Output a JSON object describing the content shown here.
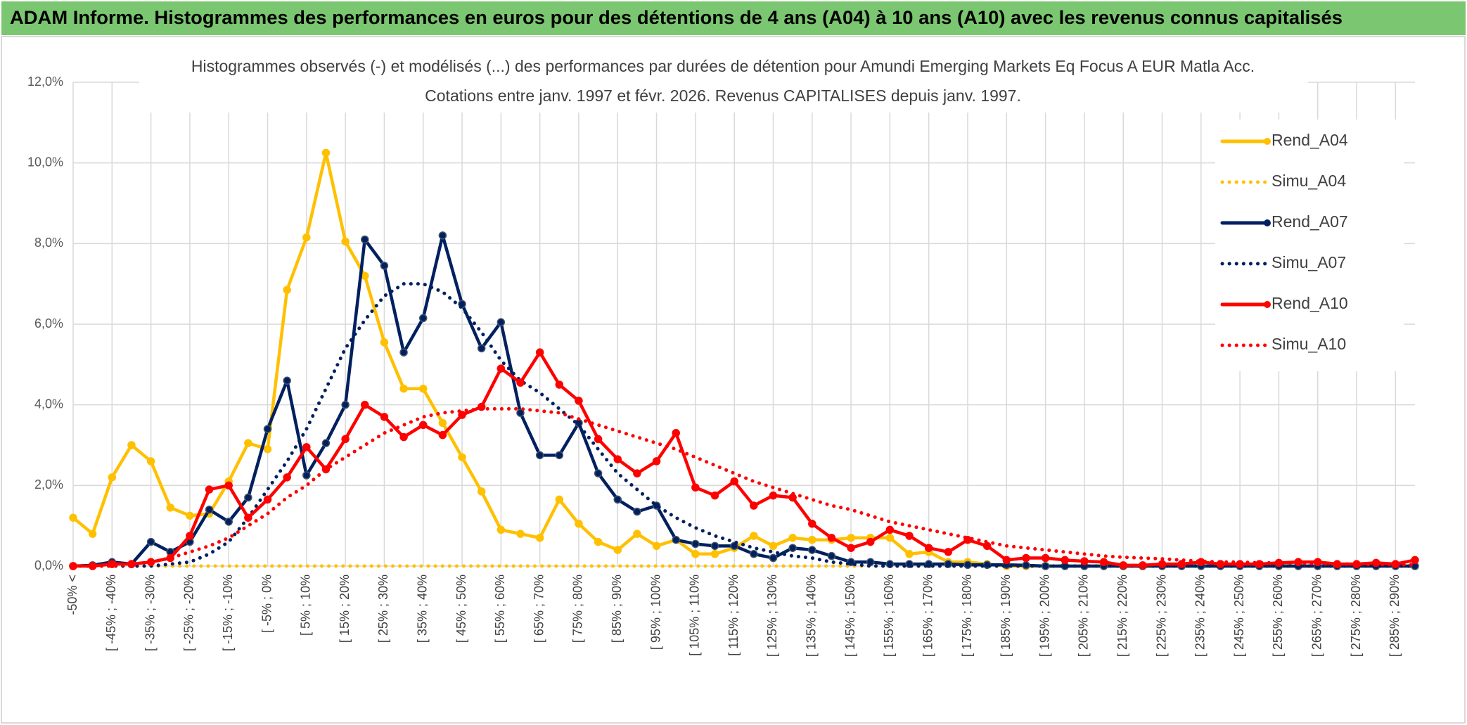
{
  "header": {
    "title": "ADAM Informe. Histogrammes des performances en euros pour des détentions de 4 ans (A04) à 10 ans (A10) avec les revenus connus capitalisés"
  },
  "chart_data": {
    "type": "line",
    "title": "Histogrammes observés (-) et modélisés (...) des performances par durées de détention pour Amundi Emerging Markets Eq Focus A EUR Matla Acc.",
    "subtitle": "Cotations entre janv. 1997 et févr. 2026. Revenus CAPITALISES depuis janv. 1997.",
    "categories": [
      "-50% <",
      null,
      "[ -45% ; -40%",
      null,
      "[ -35% ; -30%",
      null,
      "[ -25% ; -20%",
      null,
      "[ -15% ; -10%",
      null,
      "[ -5% ; 0%",
      null,
      "[ 5% ; 10%",
      null,
      "[ 15% ; 20%",
      null,
      "[ 25% ; 30%",
      null,
      "[ 35% ; 40%",
      null,
      "[ 45% ; 50%",
      null,
      "[ 55% ; 60%",
      null,
      "[ 65% ; 70%",
      null,
      "[ 75% ; 80%",
      null,
      "[ 85% ; 90%",
      null,
      "[ 95% ; 100%",
      null,
      "[ 105% ; 110%",
      null,
      "[ 115% ; 120%",
      null,
      "[ 125% ; 130%",
      null,
      "[ 135% ; 140%",
      null,
      "[ 145% ; 150%",
      null,
      "[ 155% ; 160%",
      null,
      "[ 165% ; 170%",
      null,
      "[ 175% ; 180%",
      null,
      "[ 185% ; 190%",
      null,
      "[ 195% ; 200%",
      null,
      "[ 205% ; 210%",
      null,
      "[ 215% ; 220%",
      null,
      "[ 225% ; 230%",
      null,
      "[ 235% ; 240%",
      null,
      "[ 245% ; 250%",
      null,
      "[ 255% ; 260%",
      null,
      "[ 265% ; 270%",
      null,
      "[ 275% ; 280%",
      null,
      "[ 285% ; 290%",
      null
    ],
    "series": [
      {
        "name": "Rend_A04",
        "color": "#ffc000",
        "style": "solid",
        "markers": true,
        "values": [
          1.2,
          0.8,
          2.2,
          3.0,
          2.6,
          1.45,
          1.25,
          1.3,
          2.1,
          3.05,
          2.9,
          6.85,
          8.15,
          10.25,
          8.05,
          7.2,
          5.55,
          4.4,
          4.4,
          3.55,
          2.7,
          1.85,
          0.9,
          0.8,
          0.7,
          1.65,
          1.05,
          0.6,
          0.4,
          0.8,
          0.5,
          0.65,
          0.3,
          0.3,
          0.45,
          0.75,
          0.5,
          0.7,
          0.65,
          0.65,
          0.7,
          0.7,
          0.7,
          0.3,
          0.35,
          0.1,
          0.1,
          0.05,
          0,
          0,
          0,
          0,
          0,
          0,
          0,
          0,
          0,
          0,
          0,
          0,
          0,
          0,
          0,
          0,
          0,
          0,
          0,
          0,
          0,
          0
        ]
      },
      {
        "name": "Simu_A04",
        "color": "#ffc000",
        "style": "dotted",
        "markers": false,
        "values": [
          0,
          0,
          0,
          0,
          0,
          0,
          0,
          0,
          0,
          0,
          0,
          0,
          0,
          0,
          0,
          0,
          0,
          0,
          0,
          0,
          0,
          0,
          0,
          0,
          0,
          0,
          0,
          0,
          0,
          0,
          0,
          0,
          0,
          0,
          0,
          0,
          0,
          0,
          0,
          0,
          0,
          0,
          0,
          0,
          0,
          0,
          0,
          0,
          0,
          0,
          0,
          0,
          0,
          0,
          0,
          0,
          0,
          0,
          0,
          0,
          0,
          0,
          0,
          0,
          0,
          0,
          0,
          0,
          0,
          0
        ]
      },
      {
        "name": "Rend_A07",
        "color": "#002060",
        "style": "solid",
        "markers": true,
        "values": [
          0,
          0.02,
          0.1,
          0.05,
          0.6,
          0.35,
          0.6,
          1.4,
          1.1,
          1.7,
          3.4,
          4.6,
          2.25,
          3.05,
          4.0,
          8.1,
          7.45,
          5.3,
          6.15,
          8.2,
          6.5,
          5.4,
          6.05,
          3.8,
          2.75,
          2.75,
          3.55,
          2.3,
          1.65,
          1.35,
          1.5,
          0.65,
          0.55,
          0.5,
          0.5,
          0.3,
          0.2,
          0.45,
          0.4,
          0.25,
          0.1,
          0.1,
          0.05,
          0.05,
          0.05,
          0.05,
          0.03,
          0.03,
          0.03,
          0.02,
          0,
          0,
          0,
          0,
          0,
          0,
          0,
          0,
          0,
          0,
          0,
          0,
          0,
          0,
          0,
          0,
          0,
          0,
          0,
          0
        ]
      },
      {
        "name": "Simu_A07",
        "color": "#002060",
        "style": "dotted",
        "markers": false,
        "values": [
          0,
          0,
          0,
          0,
          0,
          0.05,
          0.1,
          0.3,
          0.6,
          1.2,
          1.9,
          2.6,
          3.4,
          4.4,
          5.4,
          6.1,
          6.7,
          7.0,
          7.0,
          6.8,
          6.4,
          5.8,
          5.1,
          4.6,
          4.3,
          3.9,
          3.5,
          2.9,
          2.3,
          1.9,
          1.5,
          1.2,
          0.95,
          0.75,
          0.6,
          0.45,
          0.35,
          0.25,
          0.2,
          0.1,
          0.05,
          0,
          0,
          0,
          0,
          0,
          0,
          0,
          0,
          0,
          0,
          0,
          0,
          0,
          0,
          0,
          0,
          0,
          0,
          0,
          0,
          0,
          0,
          0,
          0,
          0,
          0,
          0,
          0,
          0
        ]
      },
      {
        "name": "Rend_A10",
        "color": "#ff0000",
        "style": "solid",
        "markers": true,
        "values": [
          0,
          0,
          0.05,
          0.05,
          0.1,
          0.2,
          0.75,
          1.9,
          2.0,
          1.2,
          1.65,
          2.2,
          2.95,
          2.4,
          3.15,
          4.0,
          3.7,
          3.2,
          3.5,
          3.25,
          3.75,
          3.95,
          4.9,
          4.55,
          5.3,
          4.5,
          4.1,
          3.15,
          2.65,
          2.3,
          2.6,
          3.3,
          1.95,
          1.75,
          2.1,
          1.5,
          1.75,
          1.7,
          1.05,
          0.7,
          0.45,
          0.6,
          0.9,
          0.75,
          0.45,
          0.35,
          0.65,
          0.5,
          0.15,
          0.2,
          0.2,
          0.15,
          0.12,
          0.1,
          0.02,
          0.02,
          0.05,
          0.05,
          0.1,
          0.05,
          0.05,
          0.05,
          0.08,
          0.1,
          0.1,
          0.05,
          0.05,
          0.08,
          0.05,
          0.15
        ]
      },
      {
        "name": "Simu_A10",
        "color": "#ff0000",
        "style": "dotted",
        "markers": false,
        "values": [
          0,
          0,
          0,
          0.05,
          0.1,
          0.2,
          0.35,
          0.5,
          0.7,
          1.0,
          1.3,
          1.7,
          2.0,
          2.4,
          2.7,
          3.0,
          3.3,
          3.5,
          3.7,
          3.8,
          3.85,
          3.9,
          3.9,
          3.9,
          3.85,
          3.8,
          3.65,
          3.5,
          3.35,
          3.2,
          3.05,
          2.9,
          2.7,
          2.5,
          2.3,
          2.1,
          1.95,
          1.8,
          1.65,
          1.5,
          1.4,
          1.25,
          1.1,
          1.0,
          0.9,
          0.8,
          0.7,
          0.6,
          0.5,
          0.45,
          0.4,
          0.35,
          0.3,
          0.25,
          0.22,
          0.2,
          0.18,
          0.15,
          0.12,
          0.1,
          0.1,
          0.08,
          0.08,
          0.07,
          0.06,
          0.05,
          0.05,
          0.04,
          0.04,
          0.03
        ]
      }
    ],
    "ylim": [
      0,
      12
    ],
    "yticks": [
      {
        "value": 0,
        "label": "0,0%"
      },
      {
        "value": 2,
        "label": "2,0%"
      },
      {
        "value": 4,
        "label": "4,0%"
      },
      {
        "value": 6,
        "label": "6,0%"
      },
      {
        "value": 8,
        "label": "8,0%"
      },
      {
        "value": 10,
        "label": "10,0%"
      },
      {
        "value": 12,
        "label": "12,0%"
      }
    ],
    "grid": true,
    "legend": "right"
  }
}
